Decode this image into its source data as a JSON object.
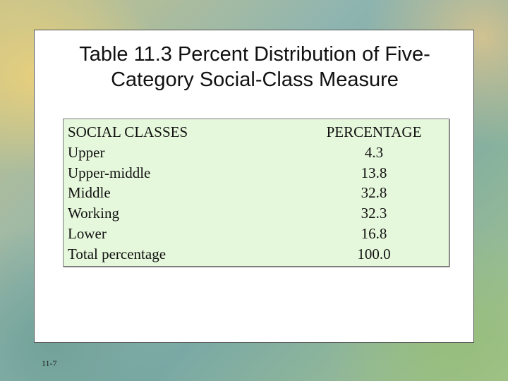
{
  "slide": {
    "title_line1": "Table 11.3 Percent Distribution of Five-",
    "title_line2": "Category Social-Class Measure",
    "slide_number": "11-7"
  },
  "table": {
    "headers": [
      "SOCIAL CLASSES",
      "PERCENTAGE"
    ],
    "rows": [
      [
        "Upper",
        "4.3"
      ],
      [
        "Upper-middle",
        "13.8"
      ],
      [
        "Middle",
        "32.8"
      ],
      [
        "Working",
        "32.3"
      ],
      [
        "Lower",
        "16.8"
      ],
      [
        "Total percentage",
        "100.0"
      ]
    ]
  },
  "colors": {
    "table_background": "#e6f8dc",
    "slide_background": "#ffffff"
  }
}
